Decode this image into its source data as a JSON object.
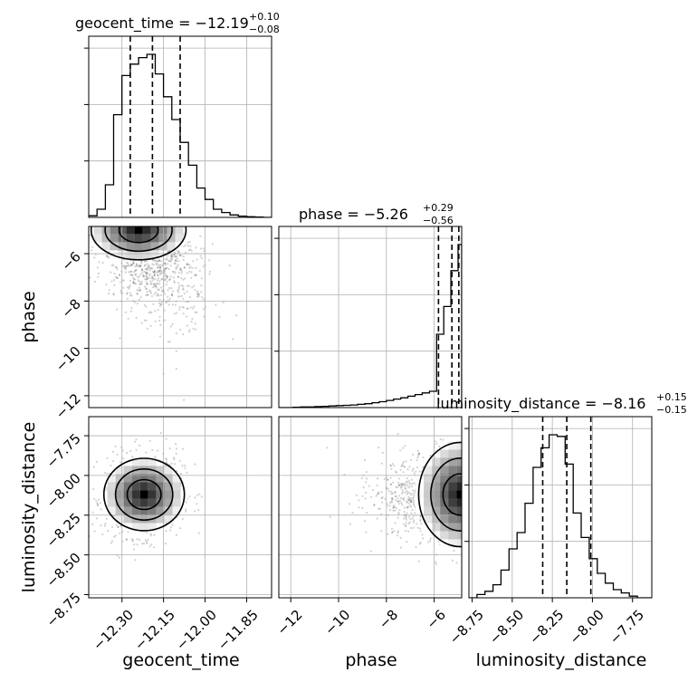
{
  "chart_data": {
    "type": "corner",
    "parameters": [
      {
        "key": "geocent_time",
        "label": "geocent_time",
        "median": -12.19,
        "err_plus": 0.1,
        "err_minus": 0.08,
        "title": {
          "main": "geocent_time = −12.19",
          "sup": "+0.10",
          "sub": "−0.08"
        },
        "range": [
          -12.42,
          -11.76
        ],
        "ticks": [
          -12.3,
          -12.15,
          -12.0,
          -11.85
        ],
        "tick_labels": [
          "−12.30",
          "−12.15",
          "−12.00",
          "−11.85"
        ],
        "quantiles": [
          -12.27,
          -12.19,
          -12.09
        ],
        "hist_edges": [
          -12.42,
          -12.39,
          -12.36,
          -12.33,
          -12.3,
          -12.27,
          -12.24,
          -12.21,
          -12.18,
          -12.15,
          -12.12,
          -12.09,
          -12.06,
          -12.03,
          -12.0,
          -11.97,
          -11.94,
          -11.91,
          -11.88,
          -11.85,
          -11.82,
          -11.79,
          -11.76
        ],
        "hist_counts": [
          0.01,
          0.05,
          0.2,
          0.63,
          0.87,
          0.94,
          0.98,
          1.0,
          0.88,
          0.74,
          0.6,
          0.46,
          0.32,
          0.18,
          0.11,
          0.05,
          0.03,
          0.015,
          0.008,
          0.004,
          0.002,
          0.0
        ]
      },
      {
        "key": "phase",
        "label": "phase",
        "median": -5.26,
        "err_plus": 0.29,
        "err_minus": 0.56,
        "title": {
          "main": "phase = −5.26",
          "sup": "+0.29",
          "sub": "−0.56"
        },
        "range": [
          -12.5,
          -4.85
        ],
        "ticks": [
          -12,
          -10,
          -8,
          -6
        ],
        "tick_labels": [
          "−12",
          "−10",
          "−8",
          "−6"
        ],
        "quantiles": [
          -5.82,
          -5.26,
          -4.97
        ],
        "hist_edges": [
          -12.5,
          -12.2,
          -11.9,
          -11.6,
          -11.3,
          -11.0,
          -10.7,
          -10.4,
          -10.1,
          -9.8,
          -9.5,
          -9.2,
          -8.9,
          -8.6,
          -8.3,
          -8.0,
          -7.7,
          -7.4,
          -7.1,
          -6.8,
          -6.5,
          -6.2,
          -5.9,
          -5.6,
          -5.3,
          -5.0,
          -4.85
        ],
        "hist_counts": [
          0.0,
          0.0,
          0.002,
          0.004,
          0.004,
          0.006,
          0.008,
          0.01,
          0.012,
          0.014,
          0.016,
          0.02,
          0.024,
          0.03,
          0.036,
          0.044,
          0.052,
          0.06,
          0.07,
          0.08,
          0.09,
          0.1,
          0.45,
          0.62,
          0.84,
          1.0
        ]
      },
      {
        "key": "luminosity_distance",
        "label": "luminosity_distance",
        "median": -8.16,
        "err_plus": 0.15,
        "err_minus": 0.15,
        "title": {
          "main": "luminosity_distance = −8.16",
          "sup": "+0.15",
          "sub": "−0.15"
        },
        "range": [
          -8.77,
          -7.63
        ],
        "ticks": [
          -8.75,
          -8.5,
          -8.25,
          -8.0,
          -7.75
        ],
        "tick_labels": [
          "−8.75",
          "−8.50",
          "−8.25",
          "−8.00",
          "−7.75"
        ],
        "quantiles": [
          -8.31,
          -8.16,
          -8.01
        ],
        "hist_edges": [
          -8.77,
          -8.72,
          -8.67,
          -8.62,
          -8.57,
          -8.52,
          -8.47,
          -8.42,
          -8.37,
          -8.32,
          -8.27,
          -8.22,
          -8.17,
          -8.12,
          -8.07,
          -8.02,
          -7.97,
          -7.92,
          -7.87,
          -7.82,
          -7.77,
          -7.72,
          -7.67,
          -7.63
        ],
        "hist_counts": [
          0.0,
          0.02,
          0.04,
          0.08,
          0.17,
          0.3,
          0.4,
          0.58,
          0.8,
          0.92,
          1.0,
          0.99,
          0.82,
          0.52,
          0.37,
          0.24,
          0.15,
          0.09,
          0.05,
          0.03,
          0.01,
          0.0,
          0.0
        ]
      }
    ],
    "pairs": [
      {
        "x": "geocent_time",
        "y": "phase",
        "center": [
          -12.24,
          -5.0
        ],
        "spread": [
          0.09,
          1.1
        ],
        "corr": -0.35
      },
      {
        "x": "geocent_time",
        "y": "luminosity_distance",
        "center": [
          -12.22,
          -8.12
        ],
        "spread": [
          0.07,
          0.13
        ],
        "corr": 0.1
      },
      {
        "x": "phase",
        "y": "luminosity_distance",
        "center": [
          -4.9,
          -8.12
        ],
        "spread": [
          1.1,
          0.14
        ],
        "corr": 0.0
      }
    ],
    "grid": true,
    "histogram_yticks": 3
  }
}
